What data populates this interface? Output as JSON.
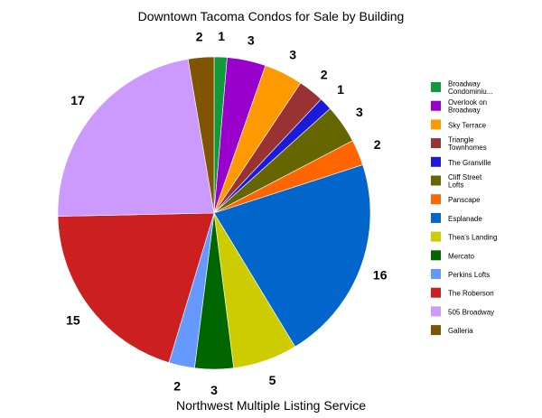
{
  "chart_data": {
    "type": "pie",
    "title": "Downtown Tacoma Condos for Sale by Building",
    "caption": "Northwest Multiple Listing Service",
    "legend_position": "right",
    "start": "top, clockwise",
    "slices": [
      {
        "label": "Broadway Condominiu...",
        "value": 1,
        "color": "#109b3a"
      },
      {
        "label": "Overlook on Broadway",
        "value": 3,
        "color": "#9900cc"
      },
      {
        "label": "Sky Terrace",
        "value": 3,
        "color": "#ff9900"
      },
      {
        "label": "Triangle Townhomes",
        "value": 2,
        "color": "#993333"
      },
      {
        "label": "The Granville",
        "value": 1,
        "color": "#1a1adb"
      },
      {
        "label": "Cliff Street Lofts",
        "value": 3,
        "color": "#666600"
      },
      {
        "label": "Panscape",
        "value": 2,
        "color": "#ff6600"
      },
      {
        "label": "Esplanade",
        "value": 16,
        "color": "#0066cc"
      },
      {
        "label": "Thea's Landing",
        "value": 5,
        "color": "#cccc00"
      },
      {
        "label": "Mercato",
        "value": 3,
        "color": "#006600"
      },
      {
        "label": "Perkins Lofts",
        "value": 2,
        "color": "#6699ff"
      },
      {
        "label": "The Roberson",
        "value": 15,
        "color": "#cc1f1f"
      },
      {
        "label": "505 Broadway",
        "value": 17,
        "color": "#cc99ff"
      },
      {
        "label": "Galleria",
        "value": 2,
        "color": "#805400"
      }
    ]
  }
}
